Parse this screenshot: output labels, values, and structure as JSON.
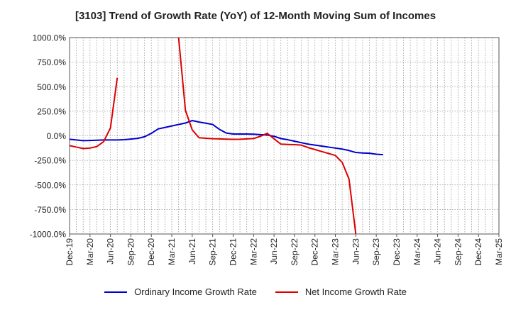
{
  "chart_data": {
    "type": "line",
    "title": "[3103]  Trend of Growth Rate (YoY) of 12-Month Moving Sum of Incomes",
    "xlabel": "",
    "ylabel": "",
    "ylim": [
      -1000,
      1000
    ],
    "y_ticks": [
      1000,
      750,
      500,
      250,
      0,
      -250,
      -500,
      -750,
      -1000
    ],
    "y_tick_labels": [
      "1000.0%",
      "750.0%",
      "500.0%",
      "250.0%",
      "0.0%",
      "-250.0%",
      "-500.0%",
      "-750.0%",
      "-1000.0%"
    ],
    "x_tick_labels": [
      "Dec-19",
      "Mar-20",
      "Jun-20",
      "Sep-20",
      "Dec-20",
      "Mar-21",
      "Jun-21",
      "Sep-21",
      "Dec-21",
      "Mar-22",
      "Jun-22",
      "Sep-22",
      "Dec-22",
      "Mar-23",
      "Jun-23",
      "Sep-23",
      "Dec-23",
      "Mar-24",
      "Jun-24",
      "Sep-24",
      "Dec-24",
      "Mar-25"
    ],
    "grid": true,
    "legend_position": "bottom",
    "series": [
      {
        "name": "Ordinary Income Growth Rate",
        "color": "#0000cc",
        "x": [
          0,
          1,
          2,
          3,
          4,
          5,
          6,
          7,
          8,
          9,
          10,
          11,
          12,
          13,
          14,
          15,
          16,
          17,
          18,
          19,
          20,
          21,
          22,
          23,
          24,
          25,
          26,
          27,
          28,
          29,
          30,
          31,
          32,
          33,
          34,
          35,
          36,
          37,
          38,
          39,
          40,
          41,
          42,
          43,
          44,
          45,
          46,
          47,
          48,
          49,
          50,
          51
        ],
        "values": [
          -35,
          -42,
          -50,
          -48,
          -45,
          -42,
          -42,
          -42,
          -40,
          -33,
          -26,
          -10,
          25,
          70,
          85,
          100,
          115,
          130,
          155,
          140,
          128,
          115,
          65,
          28,
          18,
          18,
          18,
          16,
          12,
          8,
          -5,
          -28,
          -40,
          -55,
          -70,
          -85,
          -95,
          -105,
          -115,
          -125,
          -135,
          -150,
          -170,
          -175,
          -178,
          -188,
          -192,
          null,
          null,
          null,
          null,
          null
        ]
      },
      {
        "name": "Net Income Growth Rate",
        "color": "#dd0000",
        "x": [
          0,
          1,
          2,
          3,
          4,
          5,
          6,
          7,
          8,
          9,
          10,
          11,
          12,
          13,
          14,
          15,
          16,
          17,
          18,
          19,
          20,
          21,
          22,
          23,
          24,
          25,
          26,
          27,
          28,
          29,
          30,
          31,
          32,
          33,
          34,
          35,
          36,
          37,
          38,
          39,
          40,
          41,
          42,
          43,
          44,
          45,
          46,
          47,
          48,
          49,
          50,
          51
        ],
        "values": [
          -100,
          -115,
          -130,
          -125,
          -110,
          -60,
          80,
          590,
          null,
          null,
          null,
          null,
          null,
          null,
          null,
          null,
          1000,
          260,
          60,
          -20,
          -25,
          -30,
          -32,
          -34,
          -36,
          -35,
          -32,
          -28,
          -5,
          25,
          -30,
          -85,
          -88,
          -90,
          -95,
          -120,
          -140,
          -160,
          -180,
          -200,
          -270,
          -440,
          -1000,
          null,
          null,
          null,
          null,
          null,
          null,
          null,
          null,
          null
        ]
      }
    ]
  }
}
